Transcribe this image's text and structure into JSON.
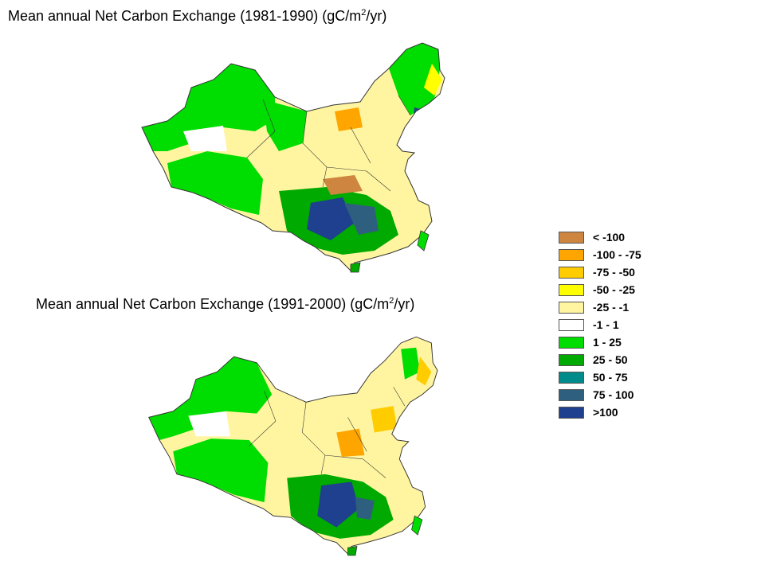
{
  "maps": [
    {
      "title_prefix": "Mean annual Net Carbon Exchange (1981-1990) (gC/m",
      "title_sup": "2",
      "title_suffix": "/yr)"
    },
    {
      "title_prefix": "Mean annual Net Carbon Exchange (1991-2000) (gC/m",
      "title_sup": "2",
      "title_suffix": "/yr)"
    }
  ],
  "legend": {
    "items": [
      {
        "label": "< -100",
        "color": "#cd853f"
      },
      {
        "label": "-100  -  -75",
        "color": "#ffa500"
      },
      {
        "label": "-75  -  -50",
        "color": "#ffcc00"
      },
      {
        "label": "-50  -  -25",
        "color": "#ffff00"
      },
      {
        "label": "-25  -  -1",
        "color": "#fff5a0"
      },
      {
        "label": "-1  -  1",
        "color": "#ffffff"
      },
      {
        "label": "1  -  25",
        "color": "#00dd00"
      },
      {
        "label": "25  -  50",
        "color": "#00aa00"
      },
      {
        "label": "50  -  75",
        "color": "#008b8b"
      },
      {
        "label": "75  -  100",
        "color": "#2f5f7f"
      },
      {
        "label": ">100",
        "color": "#1f3f8f"
      }
    ]
  }
}
